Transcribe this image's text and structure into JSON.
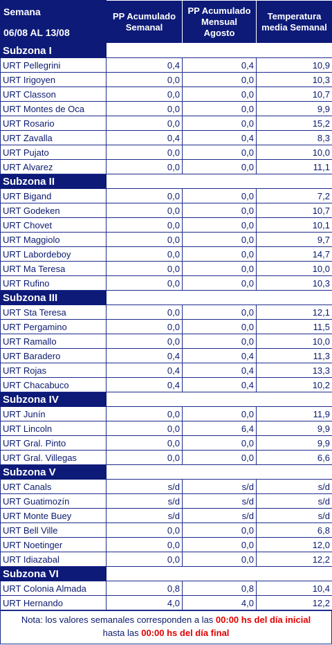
{
  "header": {
    "week_label": "Semana",
    "range": "06/08 AL 13/08",
    "columns": [
      "PP Acumulado Semanal",
      "PP Acumulado Mensual Agosto",
      "Temperatura media Semanal"
    ]
  },
  "subzones": [
    {
      "title": "Subzona I",
      "rows": [
        [
          "URT Pellegrini",
          "0,4",
          "0,4",
          "10,9"
        ],
        [
          "URT Irigoyen",
          "0,0",
          "0,0",
          "10,3"
        ],
        [
          "URT Classon",
          "0,0",
          "0,0",
          "10,7"
        ],
        [
          "URT Montes de Oca",
          "0,0",
          "0,0",
          "9,9"
        ],
        [
          "URT Rosario",
          "0,0",
          "0,0",
          "15,2"
        ],
        [
          "URT Zavalla",
          "0,4",
          "0,4",
          "8,3"
        ],
        [
          "URT Pujato",
          "0,0",
          "0,0",
          "10,0"
        ],
        [
          "URT Alvarez",
          "0,0",
          "0,0",
          "11,1"
        ]
      ]
    },
    {
      "title": "Subzona II",
      "rows": [
        [
          "URT Bigand",
          "0,0",
          "0,0",
          "7,2"
        ],
        [
          "URT Godeken",
          "0,0",
          "0,0",
          "10,7"
        ],
        [
          "URT Chovet",
          "0,0",
          "0,0",
          "10,1"
        ],
        [
          "URT Maggiolo",
          "0,0",
          "0,0",
          "9,7"
        ],
        [
          "URT Labordeboy",
          "0,0",
          "0,0",
          "14,7"
        ],
        [
          "URT Ma Teresa",
          "0,0",
          "0,0",
          "10,0"
        ],
        [
          "URT Rufino",
          "0,0",
          "0,0",
          "10,3"
        ]
      ]
    },
    {
      "title": "Subzona III",
      "rows": [
        [
          "URT Sta Teresa",
          "0,0",
          "0,0",
          "12,1"
        ],
        [
          "URT Pergamino",
          "0,0",
          "0,0",
          "11,5"
        ],
        [
          "URT Ramallo",
          "0,0",
          "0,0",
          "10,0"
        ],
        [
          "URT Baradero",
          "0,4",
          "0,4",
          "11,3"
        ],
        [
          "URT Rojas",
          "0,4",
          "0,4",
          "13,3"
        ],
        [
          "URT Chacabuco",
          "0,4",
          "0,4",
          "10,2"
        ]
      ]
    },
    {
      "title": "Subzona IV",
      "rows": [
        [
          "URT Junín",
          "0,0",
          "0,0",
          "11,9"
        ],
        [
          "URT Lincoln",
          "0,0",
          "6,4",
          "9,9"
        ],
        [
          "URT Gral. Pinto",
          "0,0",
          "0,0",
          "9,9"
        ],
        [
          "URT Gral. Villegas",
          "0,0",
          "0,0",
          "6,6"
        ]
      ]
    },
    {
      "title": "Subzona V",
      "rows": [
        [
          "URT Canals",
          "s/d",
          "s/d",
          "s/d"
        ],
        [
          "URT Guatimozín",
          "s/d",
          "s/d",
          "s/d"
        ],
        [
          "URT Monte Buey",
          "s/d",
          "s/d",
          "s/d"
        ],
        [
          "URT Bell Ville",
          "0,0",
          "0,0",
          "6,8"
        ],
        [
          "URT Noetinger",
          "0,0",
          "0,0",
          "12,0"
        ],
        [
          "URT Idiazabal",
          "0,0",
          "0,0",
          "12,2"
        ]
      ]
    },
    {
      "title": "Subzona VI",
      "rows": [
        [
          "URT Colonia Almada",
          "0,8",
          "0,8",
          "10,4"
        ],
        [
          "URT Hernando",
          "4,0",
          "4,0",
          "12,2"
        ]
      ]
    }
  ],
  "note": {
    "line1": "Nota: los valores semanales corresponden a las ",
    "time1": "00:00 hs del día inicial",
    "line2": "hasta las ",
    "time2": "00:00 hs del día final"
  }
}
